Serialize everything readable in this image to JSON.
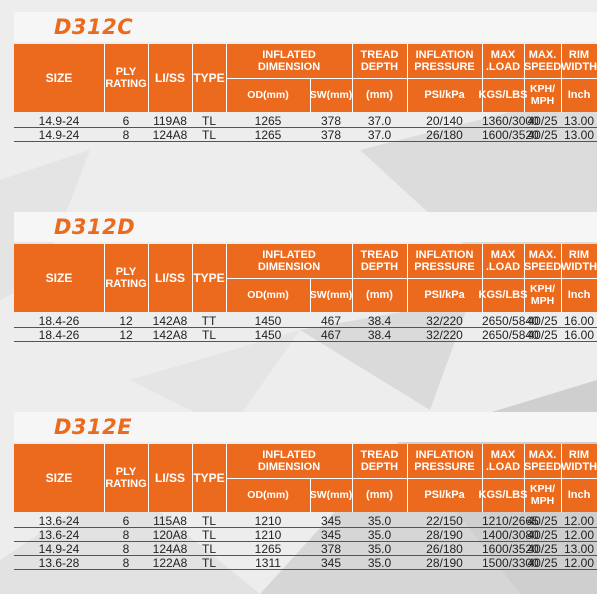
{
  "headers": {
    "size": "SIZE",
    "ply": "PLY\nRATING",
    "liss": "LI/SS",
    "type": "TYPE",
    "inflated": "INFLATED\nDIMENSION",
    "od": "OD(mm)",
    "sw": "SW(mm)",
    "tread": "TREAD\nDEPTH",
    "tread_unit": "(mm)",
    "inflation": "INFLATION\nPRESSURE",
    "inflation_unit": "PSI/kPa",
    "maxload": "MAX .LOAD",
    "maxload_unit": "KGS/LBS",
    "speed": "MAX.\nSPEED",
    "speed_unit": "KPH/\nMPH",
    "rim": "RIM\nWIDTH",
    "rim_unit": "Inch"
  },
  "sections": [
    {
      "title": "D312C",
      "rows": [
        [
          "14.9-24",
          "6",
          "119A8",
          "TL",
          "1265",
          "378",
          "37.0",
          "20/140",
          "1360/3000",
          "40/25",
          "13.00"
        ],
        [
          "14.9-24",
          "8",
          "124A8",
          "TL",
          "1265",
          "378",
          "37.0",
          "26/180",
          "1600/3520",
          "40/25",
          "13.00"
        ]
      ]
    },
    {
      "title": "D312D",
      "rows": [
        [
          "18.4-26",
          "12",
          "142A8",
          "TT",
          "1450",
          "467",
          "38.4",
          "32/220",
          "2650/5840",
          "40/25",
          "16.00"
        ],
        [
          "18.4-26",
          "12",
          "142A8",
          "TL",
          "1450",
          "467",
          "38.4",
          "32/220",
          "2650/5840",
          "40/25",
          "16.00"
        ]
      ]
    },
    {
      "title": "D312E",
      "rows": [
        [
          "13.6-24",
          "6",
          "115A8",
          "TL",
          "1210",
          "345",
          "35.0",
          "22/150",
          "1210/2665",
          "40/25",
          "12.00"
        ],
        [
          "13.6-24",
          "8",
          "120A8",
          "TL",
          "1210",
          "345",
          "35.0",
          "28/190",
          "1400/3080",
          "40/25",
          "12.00"
        ],
        [
          "14.9-24",
          "8",
          "124A8",
          "TL",
          "1265",
          "378",
          "35.0",
          "26/180",
          "1600/3520",
          "40/25",
          "13.00"
        ],
        [
          "13.6-28",
          "8",
          "122A8",
          "TL",
          "1311",
          "345",
          "35.0",
          "28/190",
          "1500/3300",
          "40/25",
          "12.00"
        ]
      ]
    }
  ],
  "colors": {
    "accent": "#ec6a1e",
    "background": "#ececec"
  }
}
